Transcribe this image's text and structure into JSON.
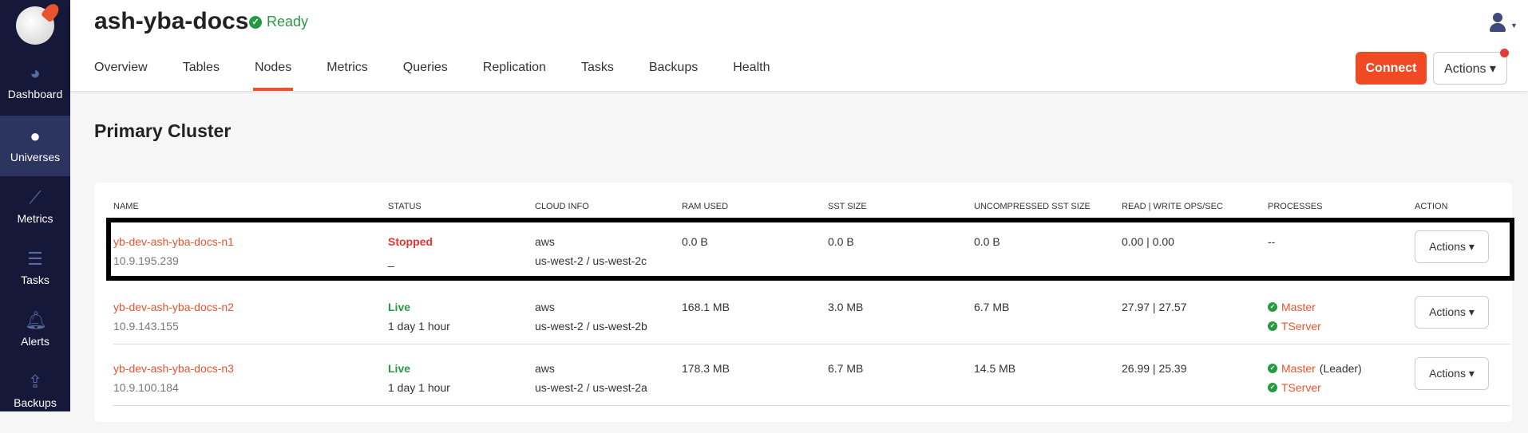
{
  "sidebar": {
    "items": [
      {
        "label": "Dashboard",
        "icon": "dashboard-icon"
      },
      {
        "label": "Universes",
        "icon": "globe-icon",
        "active": true
      },
      {
        "label": "Metrics",
        "icon": "chart-icon"
      },
      {
        "label": "Tasks",
        "icon": "list-icon"
      },
      {
        "label": "Alerts",
        "icon": "bell-icon"
      },
      {
        "label": "Backups",
        "icon": "upload-icon"
      }
    ]
  },
  "header": {
    "title": "ash-yba-docs",
    "status": "Ready",
    "connect": "Connect",
    "actions": "Actions ▾",
    "tabs": [
      "Overview",
      "Tables",
      "Nodes",
      "Metrics",
      "Queries",
      "Replication",
      "Tasks",
      "Backups",
      "Health"
    ],
    "active_tab": "Nodes"
  },
  "section_title": "Primary Cluster",
  "table": {
    "columns": [
      "Name",
      "Status",
      "Cloud Info",
      "RAM Used",
      "SST Size",
      "Uncompressed SST Size",
      "Read | Write Ops/Sec",
      "Processes",
      "Action"
    ],
    "rows": [
      {
        "name": "yb-dev-ash-yba-docs-n1",
        "ip": "10.9.195.239",
        "status": "Stopped",
        "uptime": "_",
        "cloud": "aws",
        "region": "us-west-2 / us-west-2c",
        "ram": "0.0 B",
        "sst": "0.0 B",
        "usst": "0.0 B",
        "ops": "0.00 | 0.00",
        "processes": "--",
        "action": "Actions ▾"
      },
      {
        "name": "yb-dev-ash-yba-docs-n2",
        "ip": "10.9.143.155",
        "status": "Live",
        "uptime": "1 day 1 hour",
        "cloud": "aws",
        "region": "us-west-2 / us-west-2b",
        "ram": "168.1 MB",
        "sst": "3.0 MB",
        "usst": "6.7 MB",
        "ops": "27.97 | 27.57",
        "master": "Master",
        "master_note": "",
        "tserver": "TServer",
        "action": "Actions ▾"
      },
      {
        "name": "yb-dev-ash-yba-docs-n3",
        "ip": "10.9.100.184",
        "status": "Live",
        "uptime": "1 day 1 hour",
        "cloud": "aws",
        "region": "us-west-2 / us-west-2a",
        "ram": "178.3 MB",
        "sst": "6.7 MB",
        "usst": "14.5 MB",
        "ops": "26.99 | 25.39",
        "master": "Master",
        "master_note": "(Leader)",
        "tserver": "TServer",
        "action": "Actions ▾"
      }
    ]
  },
  "colors": {
    "accent": "#ef4a23",
    "live": "#289b42",
    "sidebar": "#151838"
  }
}
